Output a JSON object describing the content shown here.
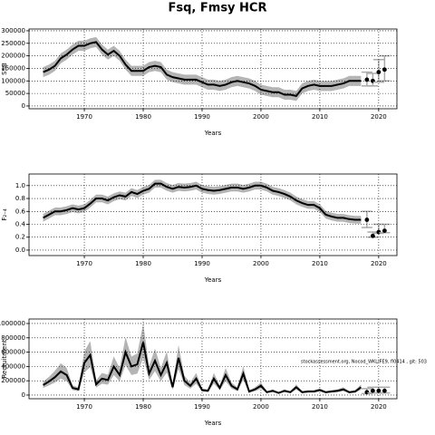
{
  "chart_data": [
    {
      "type": "line",
      "title": "Fsq, Fmsy HCR",
      "xlabel": "Years",
      "ylabel": "SSB",
      "x": [
        1963,
        1964,
        1965,
        1966,
        1967,
        1968,
        1969,
        1970,
        1971,
        1972,
        1973,
        1974,
        1975,
        1976,
        1977,
        1978,
        1979,
        1980,
        1981,
        1982,
        1983,
        1984,
        1985,
        1986,
        1987,
        1988,
        1989,
        1990,
        1991,
        1992,
        1993,
        1994,
        1995,
        1996,
        1997,
        1998,
        1999,
        2000,
        2001,
        2002,
        2003,
        2004,
        2005,
        2006,
        2007,
        2008,
        2009,
        2010,
        2011,
        2012,
        2013,
        2014,
        2015,
        2016,
        2017
      ],
      "values": [
        135000,
        145000,
        160000,
        190000,
        205000,
        225000,
        240000,
        240000,
        250000,
        255000,
        225000,
        205000,
        220000,
        200000,
        165000,
        140000,
        140000,
        140000,
        155000,
        160000,
        155000,
        125000,
        115000,
        110000,
        105000,
        105000,
        105000,
        95000,
        85000,
        85000,
        80000,
        85000,
        95000,
        100000,
        95000,
        90000,
        80000,
        65000,
        60000,
        55000,
        55000,
        45000,
        45000,
        40000,
        70000,
        80000,
        85000,
        80000,
        80000,
        80000,
        85000,
        90000,
        100000,
        100000,
        100000
      ],
      "lower": [
        115000,
        125000,
        140000,
        170000,
        185000,
        205000,
        220000,
        220000,
        230000,
        235000,
        205000,
        185000,
        200000,
        180000,
        145000,
        120000,
        120000,
        120000,
        135000,
        140000,
        135000,
        105000,
        95000,
        90000,
        85000,
        85000,
        85000,
        75000,
        65000,
        65000,
        60000,
        65000,
        75000,
        80000,
        75000,
        70000,
        60000,
        45000,
        40000,
        35000,
        35000,
        25000,
        25000,
        20000,
        50000,
        60000,
        65000,
        60000,
        60000,
        60000,
        65000,
        70000,
        80000,
        80000,
        80000
      ],
      "upper": [
        155000,
        165000,
        180000,
        210000,
        225000,
        245000,
        260000,
        260000,
        270000,
        275000,
        245000,
        225000,
        240000,
        220000,
        185000,
        160000,
        160000,
        160000,
        175000,
        180000,
        175000,
        145000,
        135000,
        130000,
        125000,
        125000,
        125000,
        115000,
        105000,
        105000,
        100000,
        105000,
        115000,
        120000,
        115000,
        110000,
        100000,
        85000,
        80000,
        75000,
        75000,
        65000,
        65000,
        60000,
        90000,
        100000,
        105000,
        100000,
        100000,
        100000,
        105000,
        110000,
        120000,
        120000,
        120000
      ],
      "projection": {
        "x": [
          2018,
          2019,
          2020,
          2021
        ],
        "values": [
          105000,
          100000,
          135000,
          145000
        ],
        "lower": [
          80000,
          80000,
          95000,
          100000
        ],
        "upper": [
          135000,
          130000,
          185000,
          200000
        ]
      },
      "xlim": [
        1960.6,
        2023.1
      ],
      "xticks": [
        1970,
        1980,
        1990,
        2000,
        2010,
        2020
      ],
      "ylim": [
        -11000,
        307000
      ],
      "yticks": [
        0,
        50000,
        100000,
        150000,
        200000,
        250000,
        300000
      ],
      "grid": true,
      "line_color": "#000000",
      "band_color": "#b4b4b4",
      "point_color": "#000000",
      "errorbar_color": "#aaaaaa"
    },
    {
      "type": "line",
      "xlabel": "Years",
      "ylabel": "F₂₋₄",
      "x": [
        1963,
        1964,
        1965,
        1966,
        1967,
        1968,
        1969,
        1970,
        1971,
        1972,
        1973,
        1974,
        1975,
        1976,
        1977,
        1978,
        1979,
        1980,
        1981,
        1982,
        1983,
        1984,
        1985,
        1986,
        1987,
        1988,
        1989,
        1990,
        1991,
        1992,
        1993,
        1994,
        1995,
        1996,
        1997,
        1998,
        1999,
        2000,
        2001,
        2002,
        2003,
        2004,
        2005,
        2006,
        2007,
        2008,
        2009,
        2010,
        2011,
        2012,
        2013,
        2014,
        2015,
        2016,
        2017
      ],
      "values": [
        0.5,
        0.55,
        0.6,
        0.6,
        0.62,
        0.65,
        0.63,
        0.65,
        0.72,
        0.8,
        0.8,
        0.77,
        0.82,
        0.85,
        0.83,
        0.9,
        0.87,
        0.92,
        0.95,
        1.03,
        1.03,
        0.98,
        0.95,
        0.98,
        0.97,
        0.98,
        1.0,
        0.95,
        0.93,
        0.92,
        0.93,
        0.95,
        0.97,
        0.97,
        0.95,
        0.97,
        1.0,
        1.0,
        0.97,
        0.92,
        0.9,
        0.87,
        0.83,
        0.77,
        0.73,
        0.7,
        0.7,
        0.65,
        0.55,
        0.52,
        0.5,
        0.5,
        0.48,
        0.47,
        0.47
      ],
      "lower": [
        0.44,
        0.49,
        0.54,
        0.54,
        0.56,
        0.59,
        0.57,
        0.59,
        0.66,
        0.74,
        0.74,
        0.71,
        0.76,
        0.79,
        0.77,
        0.84,
        0.81,
        0.86,
        0.89,
        0.97,
        0.97,
        0.92,
        0.89,
        0.92,
        0.91,
        0.92,
        0.94,
        0.89,
        0.87,
        0.86,
        0.87,
        0.89,
        0.91,
        0.91,
        0.89,
        0.91,
        0.94,
        0.94,
        0.91,
        0.86,
        0.84,
        0.81,
        0.77,
        0.71,
        0.67,
        0.64,
        0.64,
        0.59,
        0.49,
        0.46,
        0.44,
        0.44,
        0.42,
        0.41,
        0.41
      ],
      "upper": [
        0.56,
        0.61,
        0.66,
        0.66,
        0.68,
        0.71,
        0.69,
        0.71,
        0.78,
        0.86,
        0.86,
        0.83,
        0.88,
        0.91,
        0.89,
        0.96,
        0.93,
        0.98,
        1.01,
        1.09,
        1.09,
        1.04,
        1.01,
        1.04,
        1.03,
        1.04,
        1.06,
        1.01,
        0.99,
        0.98,
        0.99,
        1.01,
        1.03,
        1.03,
        1.01,
        1.03,
        1.06,
        1.06,
        1.03,
        0.98,
        0.96,
        0.93,
        0.89,
        0.83,
        0.79,
        0.76,
        0.76,
        0.71,
        0.61,
        0.58,
        0.56,
        0.56,
        0.54,
        0.53,
        0.53
      ],
      "projection": {
        "x": [
          2018,
          2019,
          2020,
          2021
        ],
        "values": [
          0.47,
          0.22,
          0.28,
          0.3
        ],
        "lower": [
          0.35,
          0.2,
          0.26,
          0.27
        ],
        "upper": [
          0.6,
          0.28,
          0.4,
          0.4
        ]
      },
      "xlim": [
        1960.6,
        2023.1
      ],
      "xticks": [
        1970,
        1980,
        1990,
        2000,
        2010,
        2020
      ],
      "ylim": [
        -0.085,
        1.18
      ],
      "yticks": [
        {
          "value": 0,
          "label": "0.0"
        },
        0.2,
        0.4,
        0.6,
        0.8,
        {
          "value": 1,
          "label": "1.0"
        }
      ],
      "grid": true,
      "line_color": "#000000",
      "band_color": "#b4b4b4",
      "point_color": "#000000",
      "errorbar_color": "#aaaaaa"
    },
    {
      "type": "line",
      "xlabel": "Years",
      "ylabel": "Recruitment",
      "annotation": "stockassessment.org, Nocod_WKLIFE9, fl0414 , git: 503",
      "x": [
        1963,
        1964,
        1965,
        1966,
        1967,
        1968,
        1969,
        1970,
        1971,
        1972,
        1973,
        1974,
        1975,
        1976,
        1977,
        1978,
        1979,
        1980,
        1981,
        1982,
        1983,
        1984,
        1985,
        1986,
        1987,
        1988,
        1989,
        1990,
        1991,
        1992,
        1993,
        1994,
        1995,
        1996,
        1997,
        1998,
        1999,
        2000,
        2001,
        2002,
        2003,
        2004,
        2005,
        2006,
        2007,
        2008,
        2009,
        2010,
        2011,
        2012,
        2013,
        2014,
        2015,
        2016,
        2017
      ],
      "values": [
        140000,
        190000,
        250000,
        330000,
        280000,
        100000,
        80000,
        450000,
        560000,
        150000,
        230000,
        210000,
        400000,
        280000,
        600000,
        400000,
        430000,
        740000,
        300000,
        480000,
        280000,
        450000,
        110000,
        520000,
        200000,
        130000,
        230000,
        70000,
        60000,
        230000,
        100000,
        280000,
        130000,
        80000,
        300000,
        50000,
        80000,
        130000,
        40000,
        60000,
        30000,
        60000,
        40000,
        110000,
        40000,
        50000,
        50000,
        70000,
        40000,
        50000,
        60000,
        80000,
        40000,
        50000,
        110000
      ],
      "lower": [
        100000,
        135000,
        175000,
        230000,
        195000,
        70000,
        55000,
        315000,
        390000,
        105000,
        160000,
        145000,
        280000,
        195000,
        420000,
        280000,
        300000,
        520000,
        210000,
        335000,
        195000,
        315000,
        75000,
        365000,
        140000,
        90000,
        160000,
        50000,
        40000,
        160000,
        70000,
        195000,
        90000,
        55000,
        210000,
        35000,
        55000,
        90000,
        30000,
        40000,
        20000,
        40000,
        30000,
        75000,
        30000,
        35000,
        35000,
        50000,
        30000,
        35000,
        40000,
        55000,
        30000,
        35000,
        75000
      ],
      "upper": [
        190000,
        255000,
        340000,
        445000,
        380000,
        135000,
        110000,
        610000,
        755000,
        205000,
        310000,
        285000,
        540000,
        380000,
        810000,
        540000,
        580000,
        1000000,
        405000,
        650000,
        380000,
        610000,
        150000,
        700000,
        270000,
        175000,
        310000,
        95000,
        80000,
        310000,
        135000,
        380000,
        175000,
        110000,
        405000,
        70000,
        110000,
        175000,
        55000,
        80000,
        40000,
        80000,
        55000,
        150000,
        55000,
        70000,
        70000,
        95000,
        55000,
        70000,
        80000,
        110000,
        55000,
        70000,
        150000
      ],
      "projection": {
        "x": [
          2018,
          2019,
          2020,
          2021
        ],
        "values": [
          40000,
          60000,
          60000,
          60000
        ],
        "lower": [
          20000,
          30000,
          30000,
          30000
        ],
        "upper": [
          90000,
          110000,
          110000,
          110000
        ]
      },
      "xlim": [
        1960.6,
        2023.1
      ],
      "xticks": [
        1970,
        1980,
        1990,
        2000,
        2010,
        2020
      ],
      "ylim": [
        -51000,
        1063000
      ],
      "yticks": [
        0,
        200000,
        400000,
        600000,
        800000,
        1000000
      ],
      "grid": true,
      "line_color": "#000000",
      "band_color": "#b4b4b4",
      "point_color": "#000000",
      "errorbar_color": "#aaaaaa"
    }
  ]
}
